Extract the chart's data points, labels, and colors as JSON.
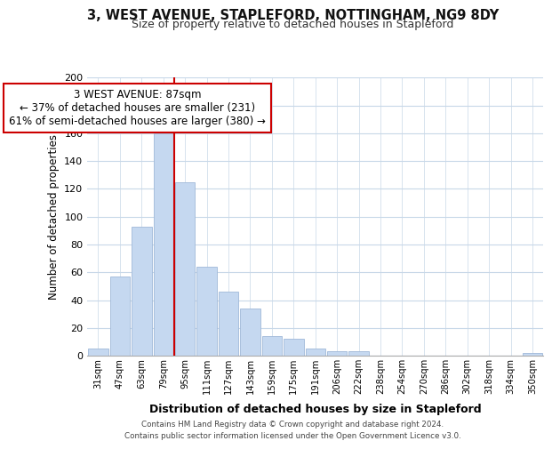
{
  "title1": "3, WEST AVENUE, STAPLEFORD, NOTTINGHAM, NG9 8DY",
  "title2": "Size of property relative to detached houses in Stapleford",
  "xlabel": "Distribution of detached houses by size in Stapleford",
  "ylabel": "Number of detached properties",
  "bar_labels": [
    "31sqm",
    "47sqm",
    "63sqm",
    "79sqm",
    "95sqm",
    "111sqm",
    "127sqm",
    "143sqm",
    "159sqm",
    "175sqm",
    "191sqm",
    "206sqm",
    "222sqm",
    "238sqm",
    "254sqm",
    "270sqm",
    "286sqm",
    "302sqm",
    "318sqm",
    "334sqm",
    "350sqm"
  ],
  "bar_values": [
    5,
    57,
    93,
    160,
    125,
    64,
    46,
    34,
    14,
    12,
    5,
    3,
    3,
    0,
    0,
    0,
    0,
    0,
    0,
    0,
    2
  ],
  "bar_color": "#c5d8f0",
  "bar_edge_color": "#a0b8d8",
  "marker_line_color": "#cc0000",
  "annotation_text": "3 WEST AVENUE: 87sqm\n← 37% of detached houses are smaller (231)\n61% of semi-detached houses are larger (380) →",
  "annotation_box_color": "white",
  "annotation_box_edge_color": "#cc0000",
  "ylim": [
    0,
    200
  ],
  "yticks": [
    0,
    20,
    40,
    60,
    80,
    100,
    120,
    140,
    160,
    180,
    200
  ],
  "footer_line1": "Contains HM Land Registry data © Crown copyright and database right 2024.",
  "footer_line2": "Contains public sector information licensed under the Open Government Licence v3.0.",
  "background_color": "#ffffff",
  "grid_color": "#c8d8e8"
}
